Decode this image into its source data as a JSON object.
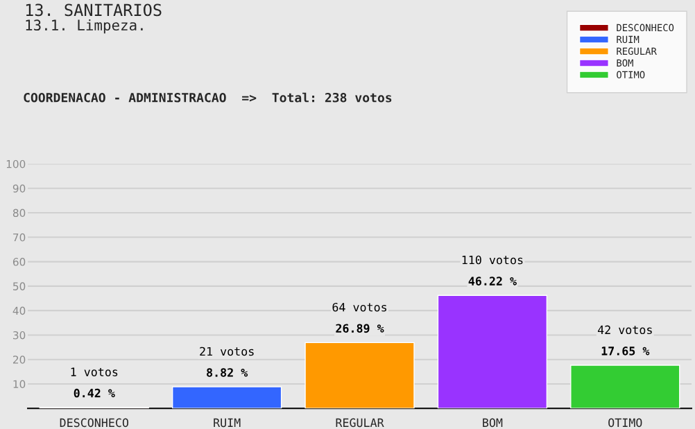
{
  "chart_data": {
    "type": "bar",
    "title": "13. SANITARIOS",
    "subtitle": "13.1. Limpeza.",
    "annotations": [
      "COORDENACAO - ADMINISTRACAO  =>  Total: 238 votos"
    ],
    "categories": [
      "DESCONHECO",
      "RUIM",
      "REGULAR",
      "BOM",
      "OTIMO"
    ],
    "series": [
      {
        "name": "DESCONHECO",
        "color": "#990000",
        "values": [
          0.42,
          null,
          null,
          null,
          null
        ],
        "value_labels": [
          "1 votos\n0.42 %",
          null,
          null,
          null,
          null
        ]
      },
      {
        "name": "RUIM",
        "color": "#3366ff",
        "values": [
          null,
          8.82,
          null,
          null,
          null
        ],
        "value_labels": [
          null,
          "21 votos\n8.82 %",
          null,
          null,
          null
        ]
      },
      {
        "name": "REGULAR",
        "color": "#ff9900",
        "values": [
          null,
          null,
          26.89,
          null,
          null
        ],
        "value_labels": [
          null,
          null,
          "64 votos\n26.89 %",
          null,
          null
        ]
      },
      {
        "name": "BOM",
        "color": "#9933ff",
        "values": [
          null,
          null,
          null,
          46.22,
          null
        ],
        "value_labels": [
          null,
          null,
          null,
          "110 votos\n46.22 %",
          null
        ]
      },
      {
        "name": "OTIMO",
        "color": "#33cc33",
        "values": [
          null,
          null,
          null,
          null,
          17.65
        ],
        "value_labels": [
          null,
          null,
          null,
          null,
          "42 votos\n17.65 %"
        ]
      }
    ],
    "ylim": [
      0,
      100
    ],
    "yticks": [
      10,
      20,
      30,
      40,
      50,
      60,
      70,
      80,
      90,
      100
    ],
    "grid": "y",
    "legend": "top right"
  }
}
